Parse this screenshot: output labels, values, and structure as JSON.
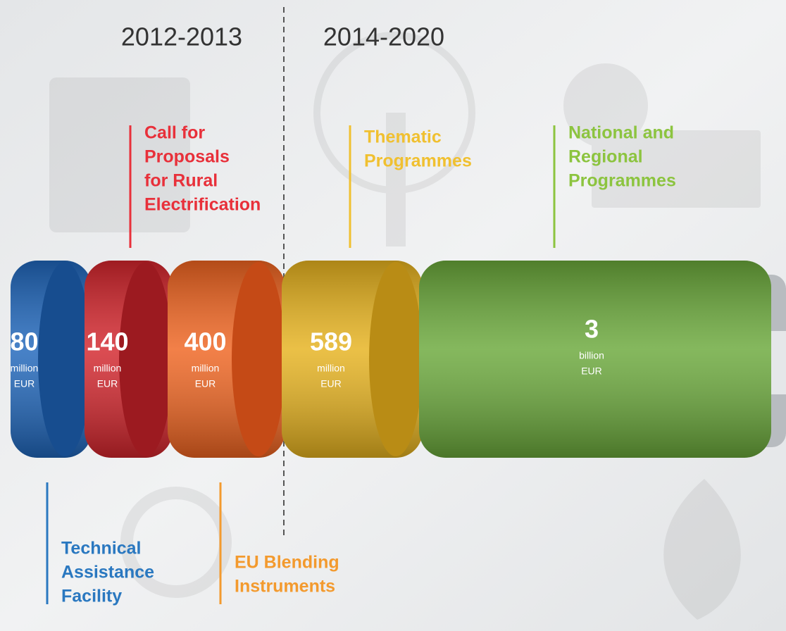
{
  "periods": [
    "2012-2013",
    "2014-2020"
  ],
  "segments": [
    {
      "amount": 80,
      "unit": "million",
      "currency": "EUR",
      "label": [
        "Technical",
        "Assistance",
        "Facility"
      ]
    },
    {
      "amount": 140,
      "unit": "million",
      "currency": "EUR",
      "label": [
        "Call for",
        "Proposals",
        "for Rural",
        "Electrification"
      ]
    },
    {
      "amount": 400,
      "unit": "million",
      "currency": "EUR",
      "label": [
        "EU Blending",
        "Instruments"
      ]
    },
    {
      "amount": 589,
      "unit": "million",
      "currency": "EUR",
      "label": [
        "Thematic",
        "Programmes"
      ]
    },
    {
      "amount": 3,
      "unit": "billion",
      "currency": "EUR",
      "label": [
        "National and",
        "Regional",
        "Programmes"
      ]
    }
  ]
}
